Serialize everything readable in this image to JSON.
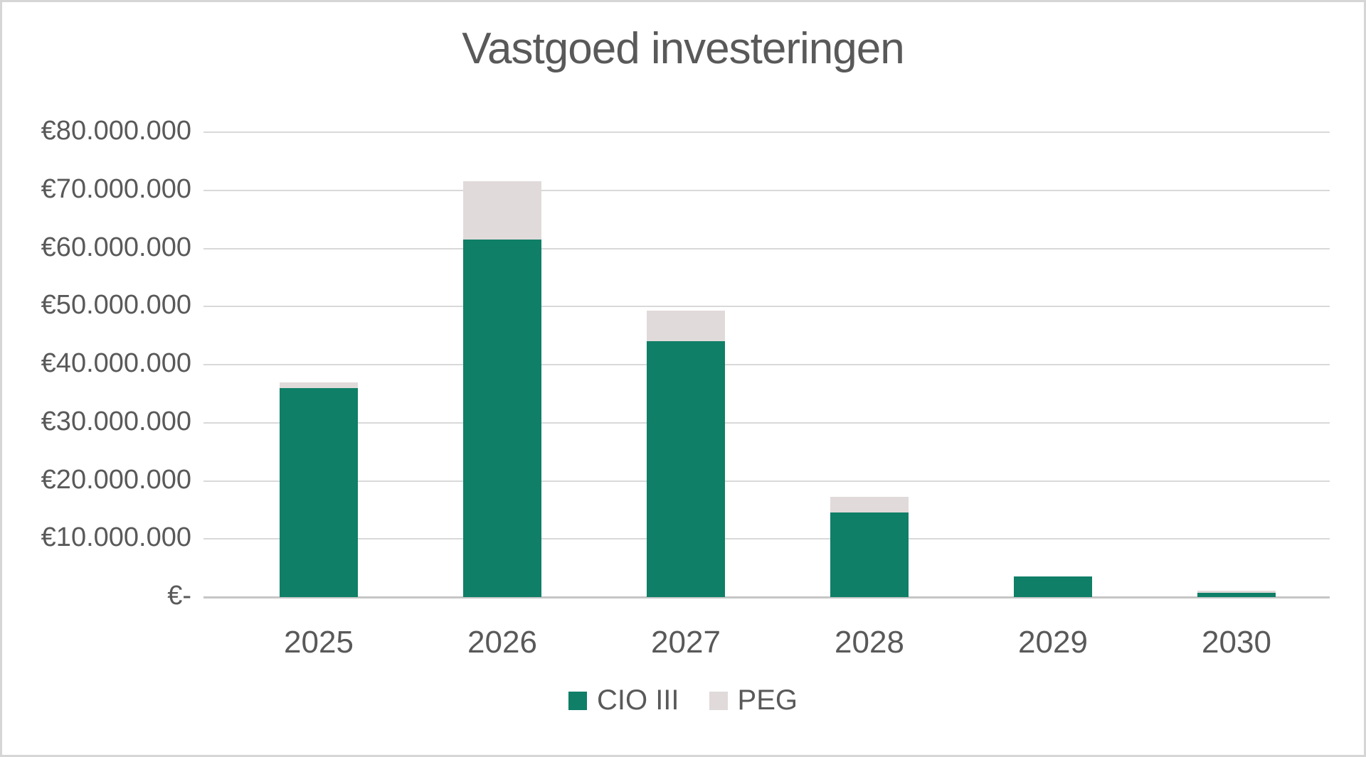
{
  "chart": {
    "title": "Vastgoed investeringen"
  },
  "chart_data": {
    "type": "bar",
    "stacked": true,
    "title": "Vastgoed investeringen",
    "xlabel": "",
    "ylabel": "",
    "categories": [
      "2025",
      "2026",
      "2027",
      "2028",
      "2029",
      "2030"
    ],
    "series": [
      {
        "name": "CIO III",
        "color": "#0f7f67",
        "values": [
          36000000,
          61500000,
          44000000,
          14500000,
          3500000,
          700000
        ]
      },
      {
        "name": "PEG",
        "color": "#e1dada",
        "values": [
          1000000,
          10000000,
          5300000,
          2700000,
          0,
          400000
        ]
      }
    ],
    "ylim": [
      0,
      80000000
    ],
    "ytick_step": 10000000,
    "ytick_labels": [
      "€-",
      "€10.000.000",
      "€20.000.000",
      "€30.000.000",
      "€40.000.000",
      "€50.000.000",
      "€60.000.000",
      "€70.000.000",
      "€80.000.000"
    ],
    "grid": true,
    "legend_position": "bottom",
    "colors": {
      "text": "#595959",
      "gridline": "#d9d9d9",
      "axis_line": "#c6c6c6",
      "background": "#ffffff",
      "border": "#d6d6d6"
    }
  }
}
